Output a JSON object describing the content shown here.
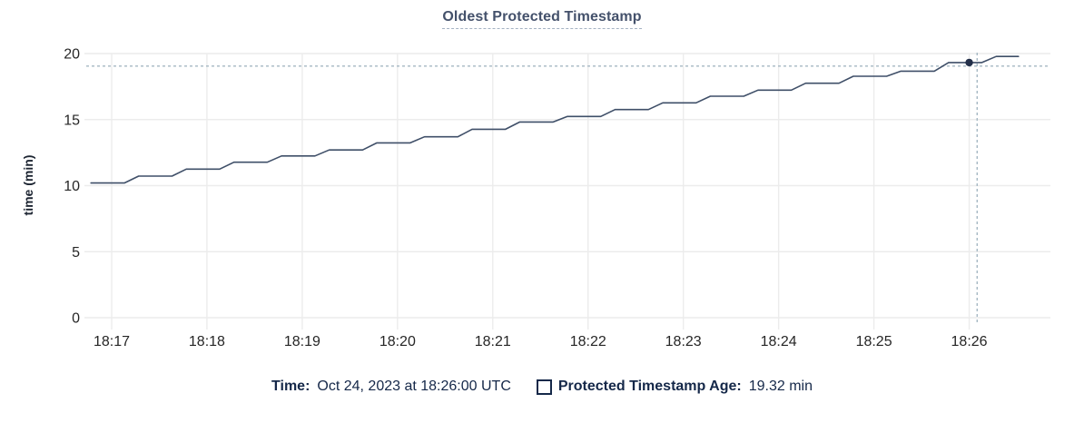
{
  "chart": {
    "title": "Oldest Protected Timestamp",
    "ylabel": "time (min)",
    "legend": {
      "time_label": "Time:",
      "time_value": "Oct 24, 2023 at 18:26:00 UTC",
      "series_label": "Protected Timestamp Age:",
      "series_value": "19.32 min"
    },
    "colors": {
      "line": "#3f4f68",
      "dot": "#232f49",
      "crosshair": "#a5b8c3",
      "grid": "#ececec",
      "tick_text": "#262626",
      "title_text": "#44516b",
      "legend_text": "#152849"
    }
  },
  "chart_data": {
    "type": "line",
    "title": "Oldest Protected Timestamp",
    "xlabel": "",
    "ylabel": "time (min)",
    "x_ticks": [
      "18:17",
      "18:18",
      "18:19",
      "18:20",
      "18:21",
      "18:22",
      "18:23",
      "18:24",
      "18:25",
      "18:26"
    ],
    "y_ticks": [
      0,
      5,
      10,
      15,
      20
    ],
    "ylim": [
      0,
      20
    ],
    "x_range": [
      "18:16:44",
      "18:26:50"
    ],
    "grid": true,
    "legend_position": "bottom",
    "series": [
      {
        "name": "Protected Timestamp Age",
        "unit": "min",
        "points": [
          [
            "18:16:47",
            10.2
          ],
          [
            "18:17:08",
            10.2
          ],
          [
            "18:17:17",
            10.72
          ],
          [
            "18:17:38",
            10.72
          ],
          [
            "18:17:47",
            11.25
          ],
          [
            "18:18:08",
            11.25
          ],
          [
            "18:18:17",
            11.77
          ],
          [
            "18:18:38",
            11.77
          ],
          [
            "18:18:47",
            12.25
          ],
          [
            "18:19:08",
            12.25
          ],
          [
            "18:19:17",
            12.7
          ],
          [
            "18:19:38",
            12.7
          ],
          [
            "18:19:47",
            13.24
          ],
          [
            "18:20:08",
            13.24
          ],
          [
            "18:20:17",
            13.7
          ],
          [
            "18:20:38",
            13.7
          ],
          [
            "18:20:47",
            14.27
          ],
          [
            "18:21:08",
            14.27
          ],
          [
            "18:21:17",
            14.82
          ],
          [
            "18:21:38",
            14.82
          ],
          [
            "18:21:47",
            15.24
          ],
          [
            "18:22:08",
            15.24
          ],
          [
            "18:22:17",
            15.76
          ],
          [
            "18:22:38",
            15.76
          ],
          [
            "18:22:47",
            16.27
          ],
          [
            "18:23:08",
            16.27
          ],
          [
            "18:23:17",
            16.77
          ],
          [
            "18:23:38",
            16.77
          ],
          [
            "18:23:47",
            17.23
          ],
          [
            "18:24:08",
            17.23
          ],
          [
            "18:24:17",
            17.75
          ],
          [
            "18:24:38",
            17.75
          ],
          [
            "18:24:47",
            18.28
          ],
          [
            "18:25:08",
            18.28
          ],
          [
            "18:25:17",
            18.67
          ],
          [
            "18:25:38",
            18.67
          ],
          [
            "18:25:47",
            19.32
          ],
          [
            "18:26:08",
            19.32
          ],
          [
            "18:26:17",
            19.78
          ],
          [
            "18:26:31",
            19.78
          ]
        ]
      }
    ],
    "highlight": {
      "time": "18:26:00",
      "value": 19.32
    },
    "crosshair": {
      "time": "18:26:05",
      "value": 19.05
    }
  }
}
